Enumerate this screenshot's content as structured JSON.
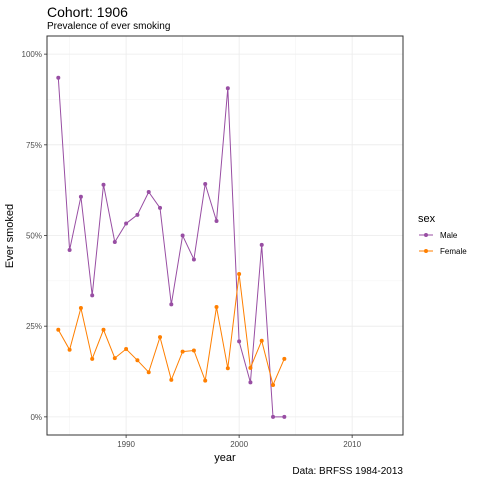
{
  "chart_data": {
    "type": "line",
    "title": "Cohort:  1906",
    "subtitle": "Prevalence of ever smoking",
    "xlabel": "year",
    "ylabel": "Ever smoked",
    "caption": "Data: BRFSS 1984-2013",
    "xlim": [
      1983,
      2014.5
    ],
    "ylim": [
      -0.05,
      1.05
    ],
    "x_ticks": [
      1990,
      2000,
      2010
    ],
    "y_ticks": [
      0,
      0.25,
      0.5,
      0.75,
      1.0
    ],
    "y_tick_labels": [
      "0%",
      "25%",
      "50%",
      "75%",
      "100%"
    ],
    "grid": true,
    "legend_position": "right",
    "legend_title": "sex",
    "series": [
      {
        "name": "Male",
        "color": "#984ea3",
        "x": [
          1984,
          1985,
          1986,
          1987,
          1988,
          1989,
          1990,
          1991,
          1992,
          1993,
          1994,
          1995,
          1996,
          1997,
          1998,
          1999,
          2000,
          2001,
          2002,
          2003,
          2004
        ],
        "values": [
          0.935,
          0.46,
          0.607,
          0.335,
          0.64,
          0.482,
          0.533,
          0.557,
          0.62,
          0.576,
          0.31,
          0.5,
          0.434,
          0.642,
          0.54,
          0.906,
          0.208,
          0.095,
          0.474,
          0.0,
          0.0
        ]
      },
      {
        "name": "Female",
        "color": "#ff7f00",
        "x": [
          1984,
          1985,
          1986,
          1987,
          1988,
          1989,
          1990,
          1991,
          1992,
          1993,
          1994,
          1995,
          1996,
          1997,
          1998,
          1999,
          2000,
          2001,
          2002,
          2003,
          2004
        ],
        "values": [
          0.24,
          0.185,
          0.3,
          0.16,
          0.24,
          0.162,
          0.187,
          0.156,
          0.123,
          0.22,
          0.102,
          0.18,
          0.183,
          0.1,
          0.303,
          0.134,
          0.394,
          0.135,
          0.21,
          0.088,
          0.16
        ]
      }
    ]
  }
}
